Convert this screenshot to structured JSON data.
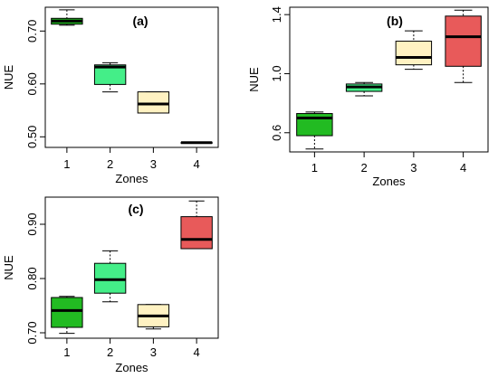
{
  "chart_data": [
    {
      "type": "boxplot",
      "panel_label": "(a)",
      "xlabel": "Zones",
      "ylabel": "NUE",
      "categories": [
        "1",
        "2",
        "3",
        "4"
      ],
      "ylim": [
        0.48,
        0.745
      ],
      "yticks": [
        "0.50",
        "0.60",
        "0.70"
      ],
      "ytick_values": [
        0.5,
        0.6,
        0.7
      ],
      "colors": [
        "#22bb22",
        "#44ee88",
        "#fff2c2",
        "#e85a5a"
      ],
      "boxes": [
        {
          "min": 0.711,
          "q1": 0.713,
          "median": 0.719,
          "q3": 0.724,
          "max": 0.74
        },
        {
          "min": 0.585,
          "q1": 0.599,
          "median": 0.632,
          "q3": 0.636,
          "max": 0.64
        },
        {
          "min": 0.545,
          "q1": 0.545,
          "median": 0.562,
          "q3": 0.585,
          "max": 0.585
        },
        {
          "min": 0.489,
          "q1": 0.489,
          "median": 0.489,
          "q3": 0.489,
          "max": 0.489
        }
      ]
    },
    {
      "type": "boxplot",
      "panel_label": "(b)",
      "xlabel": "Zones",
      "ylabel": "NUE",
      "categories": [
        "1",
        "2",
        "3",
        "4"
      ],
      "ylim": [
        0.47,
        1.45
      ],
      "yticks": [
        "0.6",
        "1.0",
        "1.4"
      ],
      "ytick_values": [
        0.6,
        1.0,
        1.4
      ],
      "colors": [
        "#22bb22",
        "#44ee88",
        "#fff2c2",
        "#e85a5a"
      ],
      "boxes": [
        {
          "min": 0.49,
          "q1": 0.58,
          "median": 0.7,
          "q3": 0.73,
          "max": 0.74
        },
        {
          "min": 0.85,
          "q1": 0.88,
          "median": 0.91,
          "q3": 0.93,
          "max": 0.94
        },
        {
          "min": 1.03,
          "q1": 1.06,
          "median": 1.11,
          "q3": 1.22,
          "max": 1.29
        },
        {
          "min": 0.94,
          "q1": 1.05,
          "median": 1.25,
          "q3": 1.39,
          "max": 1.43
        }
      ]
    },
    {
      "type": "boxplot",
      "panel_label": "(c)",
      "xlabel": "Zones",
      "ylabel": "NUE",
      "categories": [
        "1",
        "2",
        "3",
        "4"
      ],
      "ylim": [
        0.69,
        0.95
      ],
      "yticks": [
        "0.70",
        "0.80",
        "0.90"
      ],
      "ytick_values": [
        0.7,
        0.8,
        0.9
      ],
      "colors": [
        "#22bb22",
        "#44ee88",
        "#fff2c2",
        "#e85a5a"
      ],
      "boxes": [
        {
          "min": 0.699,
          "q1": 0.71,
          "median": 0.741,
          "q3": 0.765,
          "max": 0.767
        },
        {
          "min": 0.757,
          "q1": 0.773,
          "median": 0.798,
          "q3": 0.828,
          "max": 0.851
        },
        {
          "min": 0.707,
          "q1": 0.711,
          "median": 0.731,
          "q3": 0.752,
          "max": 0.752
        },
        {
          "min": 0.855,
          "q1": 0.855,
          "median": 0.872,
          "q3": 0.914,
          "max": 0.943
        }
      ]
    }
  ]
}
